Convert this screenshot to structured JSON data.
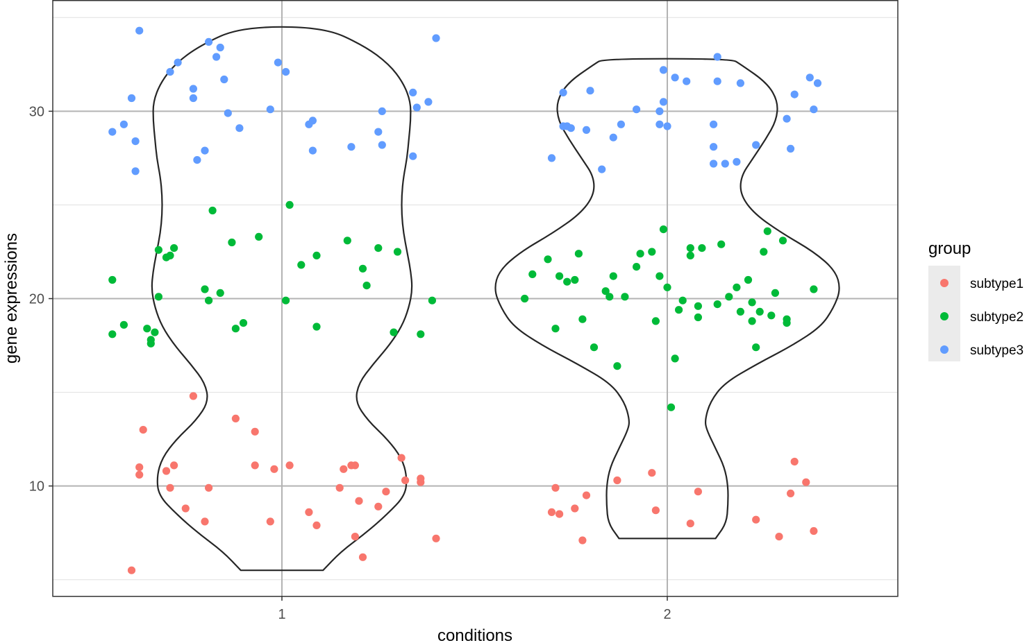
{
  "chart_data": {
    "type": "scatter",
    "subtype": "violin-with-jitter",
    "title": "",
    "xlabel": "conditions",
    "ylabel": "gene expressions",
    "categories": [
      "1",
      "2"
    ],
    "ylim": [
      4.1,
      35.9
    ],
    "yticks": [
      10,
      20,
      30
    ],
    "grid": true,
    "legend": {
      "title": "group",
      "position": "right"
    },
    "colors": {
      "subtype1": "#F8766D",
      "subtype2": "#00BA38",
      "subtype3": "#619CFF"
    },
    "violins": [
      {
        "category": "1",
        "profile": [
          [
            5.5,
            2.3
          ],
          [
            6.5,
            3.3
          ],
          [
            7.5,
            4.7
          ],
          [
            8.5,
            5.9
          ],
          [
            9.5,
            6.9
          ],
          [
            10.5,
            7.0
          ],
          [
            11.5,
            6.7
          ],
          [
            12.5,
            5.9
          ],
          [
            13.5,
            4.8
          ],
          [
            14.5,
            4.1
          ],
          [
            15.5,
            4.3
          ],
          [
            16.5,
            5.1
          ],
          [
            17.5,
            6.0
          ],
          [
            18.5,
            6.7
          ],
          [
            19.5,
            7.1
          ],
          [
            20.5,
            7.3
          ],
          [
            21.5,
            7.2
          ],
          [
            22.5,
            7.0
          ],
          [
            23.5,
            6.8
          ],
          [
            24.5,
            6.7
          ],
          [
            25.5,
            6.7
          ],
          [
            26.5,
            6.8
          ],
          [
            27.5,
            7.0
          ],
          [
            28.5,
            7.1
          ],
          [
            29.5,
            7.2
          ],
          [
            30.5,
            7.2
          ],
          [
            31.5,
            6.8
          ],
          [
            32.5,
            6.0
          ],
          [
            33.5,
            4.6
          ],
          [
            34.5,
            2.3
          ]
        ]
      },
      {
        "category": "2",
        "profile": [
          [
            7.2,
            2.7
          ],
          [
            8.0,
            3.3
          ],
          [
            9.0,
            3.4
          ],
          [
            10.0,
            3.4
          ],
          [
            11.0,
            3.2
          ],
          [
            12.0,
            2.7
          ],
          [
            13.0,
            2.2
          ],
          [
            13.5,
            2.1
          ],
          [
            14.5,
            2.4
          ],
          [
            15.5,
            3.2
          ],
          [
            16.5,
            5.0
          ],
          [
            17.5,
            7.0
          ],
          [
            18.5,
            8.6
          ],
          [
            19.5,
            9.3
          ],
          [
            20.5,
            9.7
          ],
          [
            21.5,
            9.4
          ],
          [
            22.5,
            8.2
          ],
          [
            23.5,
            6.4
          ],
          [
            24.5,
            4.9
          ],
          [
            25.5,
            4.1
          ],
          [
            26.5,
            4.1
          ],
          [
            27.5,
            4.8
          ],
          [
            28.5,
            5.5
          ],
          [
            29.5,
            6.1
          ],
          [
            30.5,
            6.2
          ],
          [
            31.5,
            5.6
          ],
          [
            32.5,
            4.1
          ],
          [
            32.8,
            3.6
          ]
        ]
      }
    ],
    "series": [
      {
        "name": "subtype1",
        "points": [
          [
            0.61,
            5.5
          ],
          [
            0.63,
            11.0
          ],
          [
            0.64,
            13.0
          ],
          [
            0.63,
            10.6
          ],
          [
            0.7,
            10.8
          ],
          [
            0.71,
            9.9
          ],
          [
            0.72,
            11.1
          ],
          [
            0.75,
            8.8
          ],
          [
            0.77,
            14.8
          ],
          [
            0.8,
            8.1
          ],
          [
            0.81,
            9.9
          ],
          [
            0.88,
            13.6
          ],
          [
            0.93,
            12.9
          ],
          [
            0.93,
            11.1
          ],
          [
            0.97,
            8.1
          ],
          [
            0.98,
            10.9
          ],
          [
            1.02,
            11.1
          ],
          [
            1.07,
            8.6
          ],
          [
            1.09,
            7.9
          ],
          [
            1.15,
            9.9
          ],
          [
            1.16,
            10.9
          ],
          [
            1.18,
            11.1
          ],
          [
            1.19,
            11.1
          ],
          [
            1.19,
            7.3
          ],
          [
            1.2,
            9.2
          ],
          [
            1.21,
            6.2
          ],
          [
            1.25,
            8.9
          ],
          [
            1.27,
            9.7
          ],
          [
            1.31,
            11.5
          ],
          [
            1.32,
            10.3
          ],
          [
            1.36,
            10.4
          ],
          [
            1.36,
            10.2
          ],
          [
            1.4,
            7.2
          ],
          [
            1.71,
            9.9
          ],
          [
            1.7,
            8.6
          ],
          [
            1.72,
            8.5
          ],
          [
            1.76,
            8.8
          ],
          [
            1.78,
            7.1
          ],
          [
            1.79,
            9.5
          ],
          [
            1.87,
            10.3
          ],
          [
            1.96,
            10.7
          ],
          [
            1.97,
            8.7
          ],
          [
            2.06,
            8.0
          ],
          [
            2.08,
            9.7
          ],
          [
            2.23,
            8.2
          ],
          [
            2.29,
            7.3
          ],
          [
            2.32,
            9.6
          ],
          [
            2.33,
            11.3
          ],
          [
            2.36,
            10.2
          ],
          [
            2.38,
            7.6
          ]
        ]
      },
      {
        "name": "subtype2",
        "points": [
          [
            0.56,
            18.1
          ],
          [
            0.56,
            21.0
          ],
          [
            0.59,
            18.6
          ],
          [
            0.65,
            18.4
          ],
          [
            0.66,
            17.8
          ],
          [
            0.66,
            17.6
          ],
          [
            0.67,
            18.2
          ],
          [
            0.68,
            20.1
          ],
          [
            0.68,
            22.6
          ],
          [
            0.7,
            22.2
          ],
          [
            0.71,
            22.3
          ],
          [
            0.72,
            22.7
          ],
          [
            0.8,
            20.5
          ],
          [
            0.81,
            19.9
          ],
          [
            0.82,
            24.7
          ],
          [
            0.84,
            20.3
          ],
          [
            0.87,
            23.0
          ],
          [
            0.88,
            18.4
          ],
          [
            0.9,
            18.7
          ],
          [
            0.94,
            23.3
          ],
          [
            1.01,
            19.9
          ],
          [
            1.02,
            25.0
          ],
          [
            1.05,
            21.8
          ],
          [
            1.09,
            22.3
          ],
          [
            1.09,
            18.5
          ],
          [
            1.17,
            23.1
          ],
          [
            1.21,
            21.6
          ],
          [
            1.22,
            20.7
          ],
          [
            1.25,
            22.7
          ],
          [
            1.29,
            18.2
          ],
          [
            1.3,
            22.5
          ],
          [
            1.36,
            18.1
          ],
          [
            1.39,
            19.9
          ],
          [
            1.63,
            20.0
          ],
          [
            1.65,
            21.3
          ],
          [
            1.69,
            22.1
          ],
          [
            1.71,
            18.4
          ],
          [
            1.72,
            21.2
          ],
          [
            1.74,
            20.9
          ],
          [
            1.76,
            21.0
          ],
          [
            1.77,
            22.4
          ],
          [
            1.78,
            18.9
          ],
          [
            1.81,
            17.4
          ],
          [
            1.84,
            20.4
          ],
          [
            1.85,
            20.1
          ],
          [
            1.86,
            21.2
          ],
          [
            1.87,
            16.4
          ],
          [
            1.89,
            20.1
          ],
          [
            1.92,
            21.7
          ],
          [
            1.93,
            22.4
          ],
          [
            1.96,
            22.5
          ],
          [
            1.97,
            18.8
          ],
          [
            1.98,
            21.2
          ],
          [
            1.99,
            23.7
          ],
          [
            2.0,
            20.6
          ],
          [
            2.01,
            14.2
          ],
          [
            2.02,
            16.8
          ],
          [
            2.03,
            19.4
          ],
          [
            2.04,
            19.9
          ],
          [
            2.06,
            22.3
          ],
          [
            2.06,
            22.7
          ],
          [
            2.08,
            19.6
          ],
          [
            2.08,
            19.0
          ],
          [
            2.09,
            22.7
          ],
          [
            2.13,
            19.7
          ],
          [
            2.14,
            22.9
          ],
          [
            2.16,
            20.1
          ],
          [
            2.18,
            20.6
          ],
          [
            2.19,
            19.3
          ],
          [
            2.21,
            21.0
          ],
          [
            2.22,
            18.8
          ],
          [
            2.22,
            19.8
          ],
          [
            2.23,
            17.4
          ],
          [
            2.24,
            19.3
          ],
          [
            2.25,
            22.5
          ],
          [
            2.26,
            23.6
          ],
          [
            2.27,
            19.1
          ],
          [
            2.28,
            20.3
          ],
          [
            2.3,
            23.1
          ],
          [
            2.31,
            18.9
          ],
          [
            2.31,
            18.7
          ],
          [
            2.38,
            20.5
          ]
        ]
      },
      {
        "name": "subtype3",
        "points": [
          [
            0.56,
            28.9
          ],
          [
            0.59,
            29.3
          ],
          [
            0.61,
            30.7
          ],
          [
            0.62,
            26.8
          ],
          [
            0.62,
            28.4
          ],
          [
            0.63,
            34.3
          ],
          [
            0.71,
            32.1
          ],
          [
            0.73,
            32.6
          ],
          [
            0.77,
            31.2
          ],
          [
            0.77,
            30.7
          ],
          [
            0.78,
            27.4
          ],
          [
            0.8,
            27.9
          ],
          [
            0.81,
            33.7
          ],
          [
            0.83,
            32.9
          ],
          [
            0.84,
            33.4
          ],
          [
            0.85,
            31.7
          ],
          [
            0.86,
            29.9
          ],
          [
            0.89,
            29.1
          ],
          [
            0.97,
            30.1
          ],
          [
            0.99,
            32.6
          ],
          [
            1.01,
            32.1
          ],
          [
            1.07,
            29.3
          ],
          [
            1.08,
            29.5
          ],
          [
            1.08,
            27.9
          ],
          [
            1.18,
            28.1
          ],
          [
            1.25,
            28.9
          ],
          [
            1.26,
            28.2
          ],
          [
            1.26,
            30.0
          ],
          [
            1.34,
            31.0
          ],
          [
            1.34,
            27.6
          ],
          [
            1.35,
            30.2
          ],
          [
            1.38,
            30.5
          ],
          [
            1.4,
            33.9
          ],
          [
            1.73,
            31.0
          ],
          [
            1.7,
            27.5
          ],
          [
            1.73,
            29.2
          ],
          [
            1.74,
            29.2
          ],
          [
            1.75,
            29.1
          ],
          [
            1.79,
            29.0
          ],
          [
            1.8,
            31.1
          ],
          [
            1.83,
            26.9
          ],
          [
            1.86,
            28.6
          ],
          [
            1.88,
            29.3
          ],
          [
            1.92,
            30.1
          ],
          [
            1.98,
            30.0
          ],
          [
            1.98,
            29.3
          ],
          [
            1.99,
            32.2
          ],
          [
            1.99,
            30.5
          ],
          [
            2.0,
            29.2
          ],
          [
            2.02,
            31.8
          ],
          [
            2.05,
            31.6
          ],
          [
            2.12,
            27.2
          ],
          [
            2.12,
            28.1
          ],
          [
            2.12,
            29.3
          ],
          [
            2.13,
            31.6
          ],
          [
            2.13,
            32.9
          ],
          [
            2.15,
            27.2
          ],
          [
            2.18,
            27.3
          ],
          [
            2.19,
            31.5
          ],
          [
            2.23,
            28.2
          ],
          [
            2.31,
            29.6
          ],
          [
            2.32,
            28.0
          ],
          [
            2.33,
            30.9
          ],
          [
            2.37,
            31.8
          ],
          [
            2.38,
            30.1
          ],
          [
            2.39,
            31.5
          ]
        ]
      }
    ]
  }
}
